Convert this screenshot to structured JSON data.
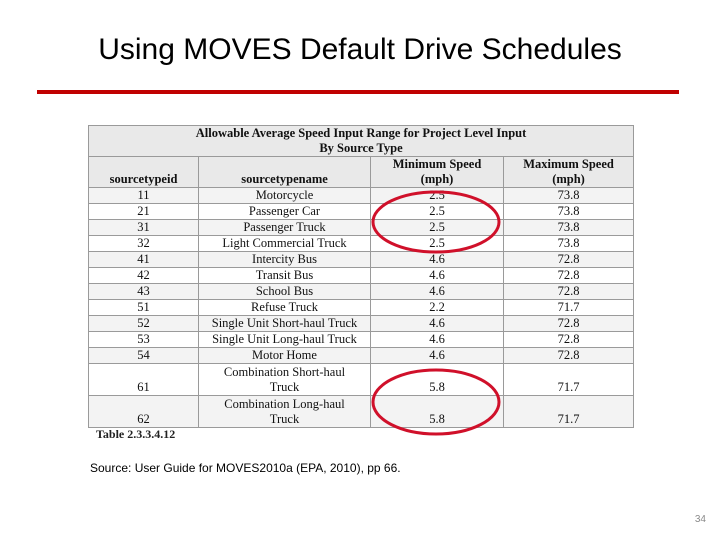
{
  "slide": {
    "title": "Using MOVES Default Drive Schedules",
    "source": "Source:  User Guide for MOVES2010a (EPA, 2010), pp 66.",
    "page_number": "34",
    "accent_color": "#c00000"
  },
  "table": {
    "title_line1": "Allowable Average Speed Input Range for Project Level Input",
    "title_line2": "By Source Type",
    "headers": {
      "sourcetypeid": "sourcetypeid",
      "sourcetypename": "sourcetypename",
      "min_line1": "Minimum Speed",
      "min_line2": "(mph)",
      "max_line1": "Maximum Speed",
      "max_line2": "(mph)"
    },
    "rows": [
      {
        "id": "11",
        "name": "Motorcycle",
        "min": "2.5",
        "max": "73.8"
      },
      {
        "id": "21",
        "name": "Passenger Car",
        "min": "2.5",
        "max": "73.8"
      },
      {
        "id": "31",
        "name": "Passenger Truck",
        "min": "2.5",
        "max": "73.8"
      },
      {
        "id": "32",
        "name": "Light Commercial Truck",
        "min": "2.5",
        "max": "73.8"
      },
      {
        "id": "41",
        "name": "Intercity Bus",
        "min": "4.6",
        "max": "72.8"
      },
      {
        "id": "42",
        "name": "Transit Bus",
        "min": "4.6",
        "max": "72.8"
      },
      {
        "id": "43",
        "name": "School Bus",
        "min": "4.6",
        "max": "72.8"
      },
      {
        "id": "51",
        "name": "Refuse Truck",
        "min": "2.2",
        "max": "71.7"
      },
      {
        "id": "52",
        "name": "Single Unit Short-haul Truck",
        "min": "4.6",
        "max": "72.8"
      },
      {
        "id": "53",
        "name": "Single Unit Long-haul Truck",
        "min": "4.6",
        "max": "72.8"
      },
      {
        "id": "54",
        "name": "Motor Home",
        "min": "4.6",
        "max": "72.8"
      }
    ],
    "rows_two_line": [
      {
        "id": "61",
        "name_line1": "Combination Short-haul",
        "name_line2": "Truck",
        "min": "5.8",
        "max": "71.7"
      },
      {
        "id": "62",
        "name_line1": "Combination Long-haul",
        "name_line2": "Truck",
        "min": "5.8",
        "max": "71.7"
      }
    ],
    "caption": "Table 2.3.3.4.12"
  },
  "annotations": {
    "highlight_color": "#d0102a"
  }
}
